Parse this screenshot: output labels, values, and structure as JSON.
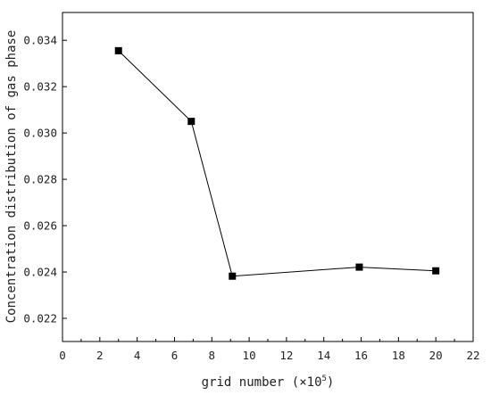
{
  "chart_data": {
    "type": "line",
    "title": "",
    "xlabel": "grid number (×10",
    "xlabel_exponent": "5",
    "xlabel_suffix": ")",
    "ylabel": "Concentration distribution of gas phase",
    "xlim": [
      0,
      22
    ],
    "ylim": [
      0.021,
      0.0352
    ],
    "xticks": [
      0,
      2,
      4,
      6,
      8,
      10,
      12,
      14,
      16,
      18,
      20,
      22
    ],
    "yticks": [
      0.022,
      0.024,
      0.026,
      0.028,
      0.03,
      0.032,
      0.034
    ],
    "ytick_labels": [
      "0.022",
      "0.024",
      "0.026",
      "0.028",
      "0.030",
      "0.032",
      "0.034"
    ],
    "grid": false,
    "legend": "none",
    "series": [
      {
        "marker": "square",
        "color": "#000000",
        "x": [
          3.0,
          6.9,
          9.1,
          15.9,
          20.0
        ],
        "y": [
          0.03355,
          0.0305,
          0.02382,
          0.02421,
          0.02405
        ]
      }
    ]
  }
}
